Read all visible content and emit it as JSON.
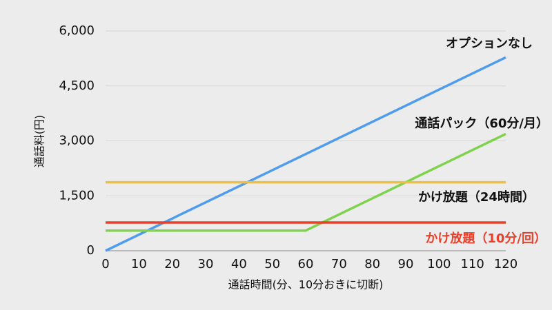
{
  "chart_data": {
    "type": "line",
    "x_label": "通話時間(分、10分おきに切断)",
    "y_label": "通話料(円)",
    "x": [
      0,
      60,
      120
    ],
    "series": [
      {
        "name": "オプションなし",
        "color": "#4f9cee",
        "label_color": "#111111",
        "values": [
          0,
          2640,
          5280
        ]
      },
      {
        "name": "通話パック（60分/月）",
        "color": "#7fd24b",
        "label_color": "#111111",
        "values": [
          550,
          550,
          3190
        ]
      },
      {
        "name": "かけ放題（24時間）",
        "color": "#f0bf3e",
        "label_color": "#111111",
        "values": [
          1870,
          1870,
          1870
        ]
      },
      {
        "name": "かけ放題（10分/回）",
        "color": "#e8402a",
        "label_color": "#e8402a",
        "values": [
          770,
          770,
          770
        ]
      }
    ],
    "xlim": [
      0,
      120
    ],
    "xticks": [
      0,
      10,
      20,
      30,
      40,
      50,
      60,
      70,
      80,
      90,
      100,
      110,
      120
    ],
    "ylim": [
      0,
      6000
    ],
    "yticks": [
      0,
      {
        "value": 1500,
        "label": "1,500"
      },
      {
        "value": 3000,
        "label": "3,000"
      },
      {
        "value": 4500,
        "label": "4,500"
      },
      {
        "value": 6000,
        "label": "6,000"
      }
    ],
    "grid": true
  }
}
